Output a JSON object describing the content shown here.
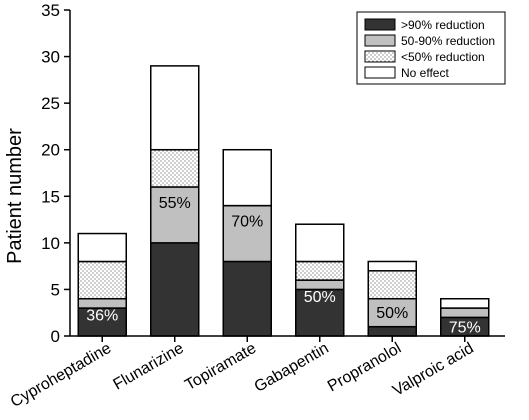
{
  "chart_data": {
    "type": "bar",
    "stacked": true,
    "categories": [
      "Cyproheptadine",
      "Flunarizine",
      "Topiramate",
      "Gabapentin",
      "Propranolol",
      "Valproic acid"
    ],
    "series": [
      {
        "name": ">90% reduction",
        "values": [
          3,
          10,
          8,
          5,
          1,
          2
        ],
        "fill": "#333333",
        "pattern": "solid"
      },
      {
        "name": "50-90% reduction",
        "values": [
          1,
          6,
          6,
          1,
          3,
          1
        ],
        "fill": "#c0c0c0",
        "pattern": "solid"
      },
      {
        "name": "<50% reduction",
        "values": [
          4,
          4,
          0,
          2,
          3,
          0
        ],
        "fill": "#ffffff",
        "pattern": "dots"
      },
      {
        "name": "No effect",
        "values": [
          3,
          9,
          6,
          4,
          1,
          1
        ],
        "fill": "#ffffff",
        "pattern": "solid"
      }
    ],
    "annotations": [
      {
        "category": "Cyproheptadine",
        "text": "36%",
        "y": 2.3,
        "color": "#ffffff"
      },
      {
        "category": "Flunarizine",
        "text": "55%",
        "y": 14.4,
        "color": "#000000"
      },
      {
        "category": "Topiramate",
        "text": "70%",
        "y": 12.4,
        "color": "#000000"
      },
      {
        "category": "Gabapentin",
        "text": "50%",
        "y": 4.3,
        "color": "#ffffff"
      },
      {
        "category": "Propranolol",
        "text": "50%",
        "y": 2.6,
        "color": "#000000"
      },
      {
        "category": "Valproic acid",
        "text": "75%",
        "y": 1.0,
        "color": "#ffffff"
      }
    ],
    "title": "",
    "xlabel": "",
    "ylabel": "Patient number",
    "ylim": [
      0,
      35
    ],
    "yticks": [
      "0",
      "5",
      "10",
      "15",
      "20",
      "25",
      "30",
      "35"
    ],
    "grid": false,
    "legend_position": "top-right"
  }
}
